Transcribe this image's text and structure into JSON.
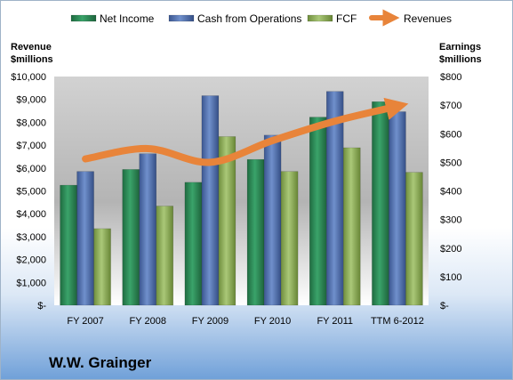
{
  "company_name": "W.W. Grainger",
  "colors": {
    "net_income": "#2e8b57",
    "cash_from_operations": "#4f6fae",
    "fcf": "#8fb05a",
    "revenues": "#e8843a"
  },
  "chart_data": {
    "type": "bar",
    "categories": [
      "FY 2007",
      "FY 2008",
      "FY 2009",
      "FY 2010",
      "FY 2011",
      "TTM 6-2012"
    ],
    "left_axis": {
      "label_line1": "Revenue",
      "label_line2": "$millions",
      "ylim": [
        0,
        10000
      ],
      "ticks": [
        "$-",
        "$1,000",
        "$2,000",
        "$3,000",
        "$4,000",
        "$5,000",
        "$6,000",
        "$7,000",
        "$8,000",
        "$9,000",
        "$10,000"
      ]
    },
    "right_axis": {
      "label_line1": "Earnings",
      "label_line2": "$millions",
      "ylim": [
        0,
        800
      ],
      "ticks": [
        "$-",
        "$100",
        "$200",
        "$300",
        "$400",
        "$500",
        "$600",
        "$700",
        "$800"
      ]
    },
    "series": [
      {
        "name": "Net Income",
        "type": "bar",
        "axis": "right",
        "values": [
          420,
          475,
          430,
          510,
          658,
          712
        ]
      },
      {
        "name": "Cash from Operations",
        "type": "bar",
        "axis": "right",
        "values": [
          468,
          530,
          733,
          595,
          748,
          677
        ]
      },
      {
        "name": "FCF",
        "type": "bar",
        "axis": "right",
        "values": [
          268,
          347,
          590,
          468,
          551,
          465
        ]
      },
      {
        "name": "Revenues",
        "type": "line",
        "axis": "left",
        "values": [
          6400,
          6850,
          6250,
          7200,
          8050,
          8700
        ]
      }
    ],
    "legend_position": "top",
    "grid": false
  }
}
